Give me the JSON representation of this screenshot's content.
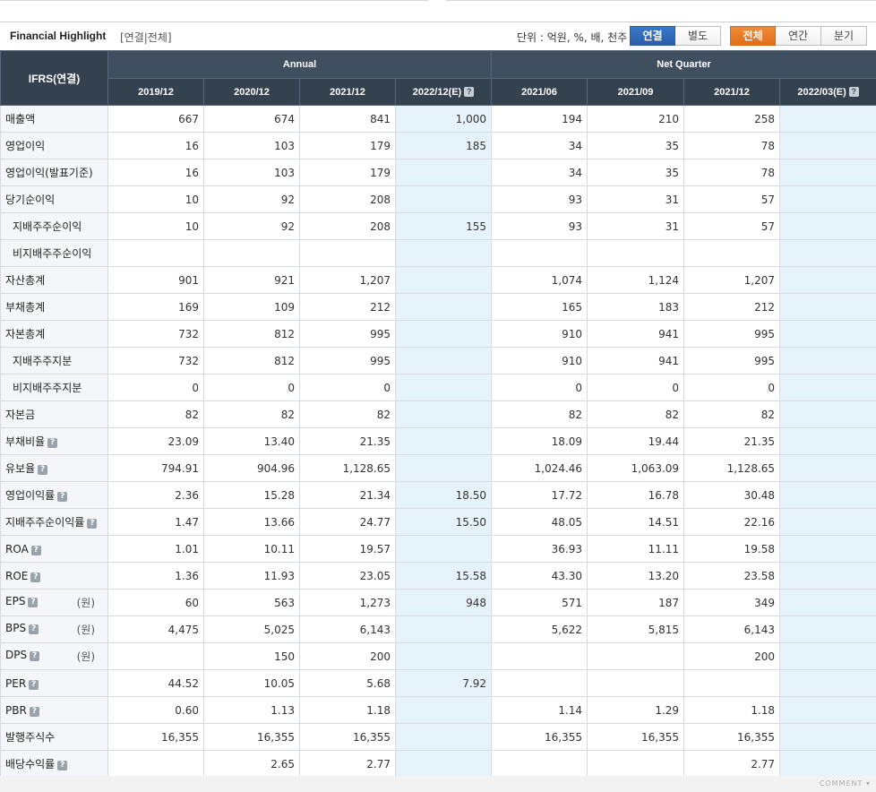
{
  "header": {
    "title": "Financial Highlight",
    "subtitle": "[연결|전체]",
    "unit": "단위 : 억원, %, 배, 천주",
    "scope_options": [
      "연결",
      "별도"
    ],
    "scope_active": "연결",
    "period_options": [
      "전체",
      "연간",
      "분기"
    ],
    "period_active": "전체"
  },
  "table": {
    "corner": "IFRS(연결)",
    "groups": [
      "Annual",
      "Net Quarter"
    ],
    "periods": [
      "2019/12",
      "2020/12",
      "2021/12",
      "2022/12(E)",
      "2021/06",
      "2021/09",
      "2021/12",
      "2022/03(E)"
    ],
    "rows": [
      {
        "label": "매출액",
        "indent": false,
        "help": false,
        "unit": "",
        "values": [
          "667",
          "674",
          "841",
          "1,000",
          "194",
          "210",
          "258",
          ""
        ]
      },
      {
        "label": "영업이익",
        "indent": false,
        "help": false,
        "unit": "",
        "values": [
          "16",
          "103",
          "179",
          "185",
          "34",
          "35",
          "78",
          ""
        ]
      },
      {
        "label": "영업이익(발표기준)",
        "indent": false,
        "help": false,
        "unit": "",
        "values": [
          "16",
          "103",
          "179",
          "",
          "34",
          "35",
          "78",
          ""
        ]
      },
      {
        "label": "당기순이익",
        "indent": false,
        "help": false,
        "unit": "",
        "values": [
          "10",
          "92",
          "208",
          "",
          "93",
          "31",
          "57",
          ""
        ]
      },
      {
        "label": "지배주주순이익",
        "indent": true,
        "help": false,
        "unit": "",
        "values": [
          "10",
          "92",
          "208",
          "155",
          "93",
          "31",
          "57",
          ""
        ]
      },
      {
        "label": "비지배주주순이익",
        "indent": true,
        "help": false,
        "unit": "",
        "values": [
          "",
          "",
          "",
          "",
          "",
          "",
          "",
          ""
        ]
      },
      {
        "label": "자산총계",
        "indent": false,
        "help": false,
        "unit": "",
        "values": [
          "901",
          "921",
          "1,207",
          "",
          "1,074",
          "1,124",
          "1,207",
          ""
        ]
      },
      {
        "label": "부채총계",
        "indent": false,
        "help": false,
        "unit": "",
        "values": [
          "169",
          "109",
          "212",
          "",
          "165",
          "183",
          "212",
          ""
        ]
      },
      {
        "label": "자본총계",
        "indent": false,
        "help": false,
        "unit": "",
        "values": [
          "732",
          "812",
          "995",
          "",
          "910",
          "941",
          "995",
          ""
        ]
      },
      {
        "label": "지배주주지분",
        "indent": true,
        "help": false,
        "unit": "",
        "values": [
          "732",
          "812",
          "995",
          "",
          "910",
          "941",
          "995",
          ""
        ]
      },
      {
        "label": "비지배주주지분",
        "indent": true,
        "help": false,
        "unit": "",
        "values": [
          "0",
          "0",
          "0",
          "",
          "0",
          "0",
          "0",
          ""
        ]
      },
      {
        "label": "자본금",
        "indent": false,
        "help": false,
        "unit": "",
        "values": [
          "82",
          "82",
          "82",
          "",
          "82",
          "82",
          "82",
          ""
        ]
      },
      {
        "label": "부채비율",
        "indent": false,
        "help": true,
        "unit": "",
        "values": [
          "23.09",
          "13.40",
          "21.35",
          "",
          "18.09",
          "19.44",
          "21.35",
          ""
        ]
      },
      {
        "label": "유보율",
        "indent": false,
        "help": true,
        "unit": "",
        "values": [
          "794.91",
          "904.96",
          "1,128.65",
          "",
          "1,024.46",
          "1,063.09",
          "1,128.65",
          ""
        ]
      },
      {
        "label": "영업이익률",
        "indent": false,
        "help": true,
        "unit": "",
        "values": [
          "2.36",
          "15.28",
          "21.34",
          "18.50",
          "17.72",
          "16.78",
          "30.48",
          ""
        ]
      },
      {
        "label": "지배주주순이익률",
        "indent": false,
        "help": true,
        "unit": "",
        "values": [
          "1.47",
          "13.66",
          "24.77",
          "15.50",
          "48.05",
          "14.51",
          "22.16",
          ""
        ]
      },
      {
        "label": "ROA",
        "indent": false,
        "help": true,
        "unit": "",
        "values": [
          "1.01",
          "10.11",
          "19.57",
          "",
          "36.93",
          "11.11",
          "19.58",
          ""
        ]
      },
      {
        "label": "ROE",
        "indent": false,
        "help": true,
        "unit": "",
        "values": [
          "1.36",
          "11.93",
          "23.05",
          "15.58",
          "43.30",
          "13.20",
          "23.58",
          ""
        ]
      },
      {
        "label": "EPS",
        "indent": false,
        "help": true,
        "unit": "(원)",
        "values": [
          "60",
          "563",
          "1,273",
          "948",
          "571",
          "187",
          "349",
          ""
        ]
      },
      {
        "label": "BPS",
        "indent": false,
        "help": true,
        "unit": "(원)",
        "values": [
          "4,475",
          "5,025",
          "6,143",
          "",
          "5,622",
          "5,815",
          "6,143",
          ""
        ]
      },
      {
        "label": "DPS",
        "indent": false,
        "help": true,
        "unit": "(원)",
        "values": [
          "",
          "150",
          "200",
          "",
          "",
          "",
          "200",
          ""
        ]
      },
      {
        "label": "PER",
        "indent": false,
        "help": true,
        "unit": "",
        "values": [
          "44.52",
          "10.05",
          "5.68",
          "7.92",
          "",
          "",
          "",
          ""
        ]
      },
      {
        "label": "PBR",
        "indent": false,
        "help": true,
        "unit": "",
        "values": [
          "0.60",
          "1.13",
          "1.18",
          "",
          "1.14",
          "1.29",
          "1.18",
          ""
        ]
      },
      {
        "label": "발행주식수",
        "indent": false,
        "help": false,
        "unit": "",
        "values": [
          "16,355",
          "16,355",
          "16,355",
          "",
          "16,355",
          "16,355",
          "16,355",
          ""
        ]
      },
      {
        "label": "배당수익률",
        "indent": false,
        "help": true,
        "unit": "",
        "values": [
          "",
          "2.65",
          "2.77",
          "",
          "",
          "",
          "2.77",
          ""
        ]
      }
    ]
  },
  "footer": {
    "comment_label": "COMMENT"
  }
}
